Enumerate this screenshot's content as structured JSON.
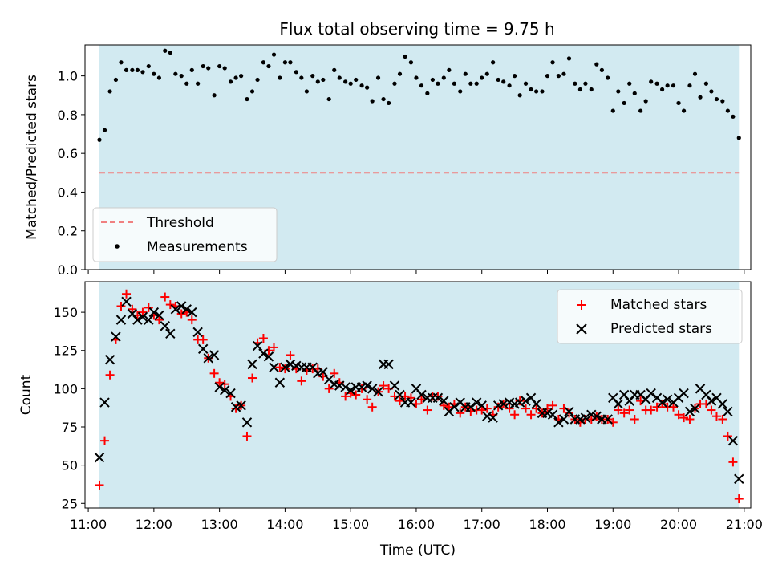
{
  "title": "Flux total observing time = 9.75 h",
  "colors": {
    "observing_span": "#add8e6",
    "threshold": "#f08080",
    "measurement": "#000000",
    "matched": "#ff0000",
    "predicted": "#000000"
  },
  "chart_data": [
    {
      "type": "scatter",
      "panel": "top",
      "ylabel": "Matched/Predicted stars",
      "xlim": [
        10.95,
        21.1
      ],
      "ylim": [
        0.0,
        1.16
      ],
      "yticks": [
        0.0,
        0.2,
        0.4,
        0.6,
        0.8,
        1.0
      ],
      "ytick_labels": [
        "0.0",
        "0.2",
        "0.4",
        "0.6",
        "0.8",
        "1.0"
      ],
      "shaded_span": [
        11.17,
        20.92
      ],
      "threshold": {
        "name": "Threshold",
        "value": 0.5,
        "x_range": [
          11.17,
          20.92
        ]
      },
      "legend": {
        "position": "lower-left",
        "entries": [
          "Threshold",
          "Measurements"
        ]
      },
      "series": [
        {
          "name": "Measurements",
          "marker": "dot",
          "x": [
            11.17,
            11.25,
            11.33,
            11.42,
            11.5,
            11.58,
            11.67,
            11.75,
            11.83,
            11.92,
            12.0,
            12.08,
            12.17,
            12.25,
            12.33,
            12.42,
            12.5,
            12.58,
            12.67,
            12.75,
            12.83,
            12.92,
            13.0,
            13.08,
            13.17,
            13.25,
            13.33,
            13.42,
            13.5,
            13.58,
            13.67,
            13.75,
            13.83,
            13.92,
            14.0,
            14.08,
            14.17,
            14.25,
            14.33,
            14.42,
            14.5,
            14.58,
            14.67,
            14.75,
            14.83,
            14.92,
            15.0,
            15.08,
            15.17,
            15.25,
            15.33,
            15.42,
            15.5,
            15.58,
            15.67,
            15.75,
            15.83,
            15.92,
            16.0,
            16.08,
            16.17,
            16.25,
            16.33,
            16.42,
            16.5,
            16.58,
            16.67,
            16.75,
            16.83,
            16.92,
            17.0,
            17.08,
            17.17,
            17.25,
            17.33,
            17.42,
            17.5,
            17.58,
            17.67,
            17.75,
            17.83,
            17.92,
            18.0,
            18.08,
            18.17,
            18.25,
            18.33,
            18.42,
            18.5,
            18.58,
            18.67,
            18.75,
            18.83,
            18.92,
            19.0,
            19.08,
            19.17,
            19.25,
            19.33,
            19.42,
            19.5,
            19.58,
            19.67,
            19.75,
            19.83,
            19.92,
            20.0,
            20.08,
            20.17,
            20.25,
            20.33,
            20.42,
            20.5,
            20.58,
            20.67,
            20.75,
            20.83,
            20.92
          ],
          "y": [
            0.67,
            0.72,
            0.92,
            0.98,
            1.07,
            1.03,
            1.03,
            1.03,
            1.02,
            1.05,
            1.01,
            0.99,
            1.13,
            1.12,
            1.01,
            1.0,
            0.96,
            1.03,
            0.96,
            1.05,
            1.04,
            0.9,
            1.05,
            1.04,
            0.97,
            0.99,
            1.0,
            0.88,
            0.92,
            0.98,
            1.07,
            1.05,
            1.11,
            0.99,
            1.07,
            1.07,
            1.02,
            0.99,
            0.92,
            1.0,
            0.97,
            0.98,
            0.88,
            1.03,
            0.99,
            0.97,
            0.96,
            0.98,
            0.95,
            0.94,
            0.87,
            0.99,
            0.88,
            0.86,
            0.96,
            1.01,
            1.1,
            1.07,
            0.99,
            0.95,
            0.91,
            0.98,
            0.96,
            0.99,
            1.03,
            0.96,
            0.92,
            1.01,
            0.96,
            0.96,
            0.99,
            1.01,
            1.07,
            0.98,
            0.97,
            0.95,
            1.0,
            0.9,
            0.96,
            0.93,
            0.92,
            0.92,
            1.0,
            1.07,
            1.0,
            1.01,
            1.09,
            0.96,
            0.93,
            0.96,
            0.93,
            1.06,
            1.03,
            0.99,
            0.82,
            0.92,
            0.86,
            0.96,
            0.91,
            0.82,
            0.87,
            0.97,
            0.96,
            0.93,
            0.95,
            0.95,
            0.86,
            0.82,
            0.95,
            1.01,
            0.89,
            0.96,
            0.92,
            0.88,
            0.87,
            0.82,
            0.79,
            0.68
          ]
        }
      ]
    },
    {
      "type": "scatter",
      "panel": "bottom",
      "xlabel": "Time (UTC)",
      "ylabel": "Count",
      "xlim": [
        10.95,
        21.1
      ],
      "ylim": [
        22,
        170
      ],
      "xticks": [
        11,
        12,
        13,
        14,
        15,
        16,
        17,
        18,
        19,
        20,
        21
      ],
      "xtick_labels": [
        "11:00",
        "12:00",
        "13:00",
        "14:00",
        "15:00",
        "16:00",
        "17:00",
        "18:00",
        "19:00",
        "20:00",
        "21:00"
      ],
      "yticks": [
        25,
        50,
        75,
        100,
        125,
        150
      ],
      "ytick_labels": [
        "25",
        "50",
        "75",
        "100",
        "125",
        "150"
      ],
      "shaded_span": [
        11.17,
        20.92
      ],
      "legend": {
        "position": "top-right",
        "entries": [
          "Matched stars",
          "Predicted stars"
        ]
      },
      "x": [
        11.17,
        11.25,
        11.33,
        11.42,
        11.5,
        11.58,
        11.67,
        11.75,
        11.83,
        11.92,
        12.0,
        12.08,
        12.17,
        12.25,
        12.33,
        12.42,
        12.5,
        12.58,
        12.67,
        12.75,
        12.83,
        12.92,
        13.0,
        13.08,
        13.17,
        13.25,
        13.33,
        13.42,
        13.5,
        13.58,
        13.67,
        13.75,
        13.83,
        13.92,
        14.0,
        14.08,
        14.17,
        14.25,
        14.33,
        14.42,
        14.5,
        14.58,
        14.67,
        14.75,
        14.83,
        14.92,
        15.0,
        15.08,
        15.17,
        15.25,
        15.33,
        15.42,
        15.5,
        15.58,
        15.67,
        15.75,
        15.83,
        15.92,
        16.0,
        16.08,
        16.17,
        16.25,
        16.33,
        16.42,
        16.5,
        16.58,
        16.67,
        16.75,
        16.83,
        16.92,
        17.0,
        17.08,
        17.17,
        17.25,
        17.33,
        17.42,
        17.5,
        17.58,
        17.67,
        17.75,
        17.83,
        17.92,
        18.0,
        18.08,
        18.17,
        18.25,
        18.33,
        18.42,
        18.5,
        18.58,
        18.67,
        18.75,
        18.83,
        18.92,
        19.0,
        19.08,
        19.17,
        19.25,
        19.33,
        19.42,
        19.5,
        19.58,
        19.67,
        19.75,
        19.83,
        19.92,
        20.0,
        20.08,
        20.17,
        20.25,
        20.33,
        20.42,
        20.5,
        20.58,
        20.67,
        20.75,
        20.83,
        20.92
      ],
      "series": [
        {
          "name": "Matched stars",
          "marker": "plus",
          "y": [
            37,
            66,
            109,
            132,
            154,
            162,
            152,
            148,
            150,
            153,
            148,
            145,
            160,
            155,
            154,
            149,
            150,
            145,
            132,
            132,
            120,
            110,
            104,
            103,
            95,
            87,
            89,
            69,
            107,
            130,
            133,
            125,
            127,
            114,
            113,
            122,
            113,
            105,
            112,
            113,
            113,
            108,
            100,
            110,
            104,
            95,
            97,
            96,
            100,
            93,
            88,
            98,
            102,
            100,
            95,
            92,
            95,
            94,
            90,
            93,
            86,
            95,
            95,
            89,
            88,
            90,
            84,
            88,
            85,
            86,
            86,
            87,
            83,
            88,
            90,
            87,
            83,
            92,
            87,
            83,
            87,
            84,
            87,
            89,
            80,
            87,
            84,
            80,
            78,
            80,
            80,
            82,
            80,
            80,
            78,
            86,
            84,
            86,
            80,
            92,
            86,
            86,
            88,
            90,
            88,
            88,
            83,
            81,
            80,
            87,
            90,
            90,
            86,
            82,
            80,
            69,
            52,
            28
          ]
        },
        {
          "name": "Predicted stars",
          "marker": "x",
          "y": [
            55,
            91,
            119,
            134,
            145,
            157,
            149,
            145,
            147,
            145,
            150,
            148,
            141,
            136,
            152,
            154,
            152,
            150,
            137,
            126,
            120,
            122,
            101,
            99,
            97,
            88,
            89,
            78,
            116,
            128,
            123,
            121,
            114,
            104,
            114,
            116,
            115,
            114,
            114,
            114,
            110,
            111,
            106,
            103,
            102,
            101,
            99,
            101,
            101,
            102,
            100,
            98,
            116,
            116,
            102,
            96,
            91,
            91,
            100,
            96,
            94,
            94,
            94,
            92,
            85,
            88,
            91,
            88,
            88,
            91,
            89,
            82,
            81,
            89,
            90,
            91,
            90,
            91,
            92,
            94,
            90,
            84,
            84,
            83,
            78,
            80,
            85,
            80,
            80,
            81,
            83,
            82,
            80,
            80,
            94,
            90,
            96,
            92,
            96,
            96,
            93,
            97,
            94,
            91,
            93,
            91,
            94,
            97,
            85,
            87,
            100,
            96,
            92,
            94,
            90,
            85,
            66,
            41
          ]
        }
      ]
    }
  ]
}
